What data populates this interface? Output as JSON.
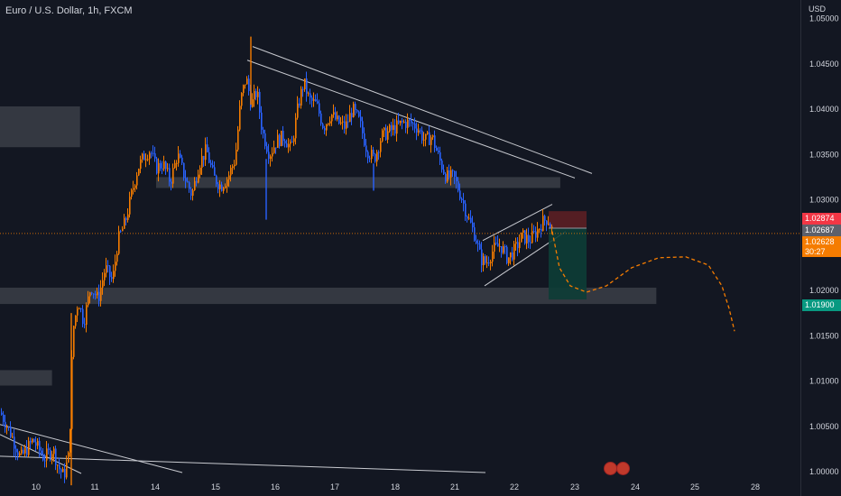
{
  "header": {
    "title": "Euro / U.S. Dollar, 1h, FXCM",
    "currency": "USD"
  },
  "price_tags": {
    "upper": {
      "value": "1.02874",
      "color": "#f23645"
    },
    "entry": {
      "value": "1.02687",
      "color": "#5d606b"
    },
    "last": {
      "value": "1.02628",
      "color": "#f57c00"
    },
    "countdown": "30:27",
    "target": {
      "value": "1.01900",
      "color": "#089981"
    }
  },
  "icons": {
    "event_flags": "us-flag-icon"
  },
  "chart_data": {
    "type": "candlestick",
    "title": "Euro / U.S. Dollar, 1h, FXCM",
    "ylabel": "USD",
    "ylim": [
      0.998,
      1.0535
    ],
    "y_ticks": [
      "1.05000",
      "1.04500",
      "1.04000",
      "1.03500",
      "1.03000",
      "1.02500",
      "1.02000",
      "1.01500",
      "1.01000",
      "1.00500",
      "1.00000"
    ],
    "x_ticks": [
      "10",
      "11",
      "14",
      "15",
      "16",
      "17",
      "18",
      "21",
      "22",
      "23",
      "24",
      "25",
      "28"
    ],
    "colors": {
      "up": "#f57c00",
      "down": "#2962ff"
    },
    "path_points": [
      [
        0,
        1.0065
      ],
      [
        10,
        1.0045
      ],
      [
        22,
        1.0015
      ],
      [
        36,
        1.0035
      ],
      [
        48,
        1.0015
      ],
      [
        58,
        1.0025
      ],
      [
        64,
        1.0005
      ],
      [
        70,
        0.9995
      ],
      [
        76,
        1.002
      ],
      [
        80,
        1.0155
      ],
      [
        86,
        1.019
      ],
      [
        92,
        1.0165
      ],
      [
        100,
        1.0205
      ],
      [
        108,
        1.019
      ],
      [
        116,
        1.0225
      ],
      [
        124,
        1.021
      ],
      [
        130,
        1.0255
      ],
      [
        138,
        1.0275
      ],
      [
        146,
        1.031
      ],
      [
        152,
        1.0335
      ],
      [
        160,
        1.035
      ],
      [
        166,
        1.0355
      ],
      [
        172,
        1.0335
      ],
      [
        180,
        1.034
      ],
      [
        188,
        1.032
      ],
      [
        196,
        1.035
      ],
      [
        204,
        1.0325
      ],
      [
        212,
        1.0305
      ],
      [
        220,
        1.034
      ],
      [
        228,
        1.0355
      ],
      [
        236,
        1.0325
      ],
      [
        244,
        1.0315
      ],
      [
        252,
        1.0325
      ],
      [
        260,
        1.0345
      ],
      [
        266,
        1.041
      ],
      [
        272,
        1.0435
      ],
      [
        278,
        1.0405
      ],
      [
        284,
        1.042
      ],
      [
        290,
        1.0375
      ],
      [
        298,
        1.035
      ],
      [
        306,
        1.0365
      ],
      [
        314,
        1.037
      ],
      [
        322,
        1.0355
      ],
      [
        330,
        1.0405
      ],
      [
        336,
        1.043
      ],
      [
        342,
        1.041
      ],
      [
        350,
        1.0405
      ],
      [
        358,
        1.038
      ],
      [
        366,
        1.0395
      ],
      [
        374,
        1.0385
      ],
      [
        382,
        1.038
      ],
      [
        390,
        1.04
      ],
      [
        398,
        1.0385
      ],
      [
        406,
        1.0355
      ],
      [
        414,
        1.0345
      ],
      [
        422,
        1.037
      ],
      [
        430,
        1.0375
      ],
      [
        438,
        1.038
      ],
      [
        446,
        1.0385
      ],
      [
        454,
        1.0385
      ],
      [
        462,
        1.038
      ],
      [
        470,
        1.0365
      ],
      [
        478,
        1.037
      ],
      [
        486,
        1.0345
      ],
      [
        494,
        1.0325
      ],
      [
        502,
        1.0325
      ],
      [
        510,
        1.0305
      ],
      [
        518,
        1.028
      ],
      [
        526,
        1.026
      ],
      [
        532,
        1.0235
      ],
      [
        538,
        1.023
      ],
      [
        546,
        1.0245
      ],
      [
        554,
        1.025
      ],
      [
        562,
        1.0235
      ],
      [
        570,
        1.0245
      ],
      [
        578,
        1.026
      ],
      [
        586,
        1.0255
      ],
      [
        594,
        1.0265
      ],
      [
        600,
        1.0275
      ],
      [
        606,
        1.028
      ],
      [
        612,
        1.0265
      ]
    ],
    "levels": [
      {
        "from": 0.0,
        "to": 0.1,
        "low": 1.0358,
        "high": 1.0403
      },
      {
        "from": 0.0,
        "to": 0.82,
        "low": 1.0185,
        "high": 1.0203
      },
      {
        "from": 0.195,
        "to": 0.7,
        "low": 1.0313,
        "high": 1.0325
      },
      {
        "from": 0.0,
        "to": 0.065,
        "low": 1.0095,
        "high": 1.0112
      }
    ],
    "trendlines": [
      [
        [
          280,
          1.0469
        ],
        [
          656,
          1.0329
        ]
      ],
      [
        [
          274,
          1.0454
        ],
        [
          637,
          1.0324
        ]
      ],
      [
        [
          0,
          1.0052
        ],
        [
          202,
          0.9999
        ]
      ],
      [
        [
          0,
          1.0041
        ],
        [
          90,
          0.9998
        ]
      ],
      [
        [
          0,
          1.0017
        ],
        [
          538,
          0.9999
        ]
      ],
      [
        [
          535,
          1.0255
        ],
        [
          612,
          1.0295
        ]
      ],
      [
        [
          537,
          1.0205
        ],
        [
          627,
          1.0265
        ]
      ]
    ],
    "position": {
      "entry": 1.02687,
      "stop": 1.02874,
      "target": 1.019,
      "x_start": 608,
      "x_end": 650
    },
    "projection": [
      [
        612,
        1.0265
      ],
      [
        620,
        1.0225
      ],
      [
        632,
        1.0205
      ],
      [
        650,
        1.0198
      ],
      [
        672,
        1.0205
      ],
      [
        700,
        1.0225
      ],
      [
        730,
        1.0236
      ],
      [
        760,
        1.0237
      ],
      [
        785,
        1.0228
      ],
      [
        800,
        1.0205
      ],
      [
        808,
        1.018
      ],
      [
        814,
        1.0155
      ]
    ]
  }
}
